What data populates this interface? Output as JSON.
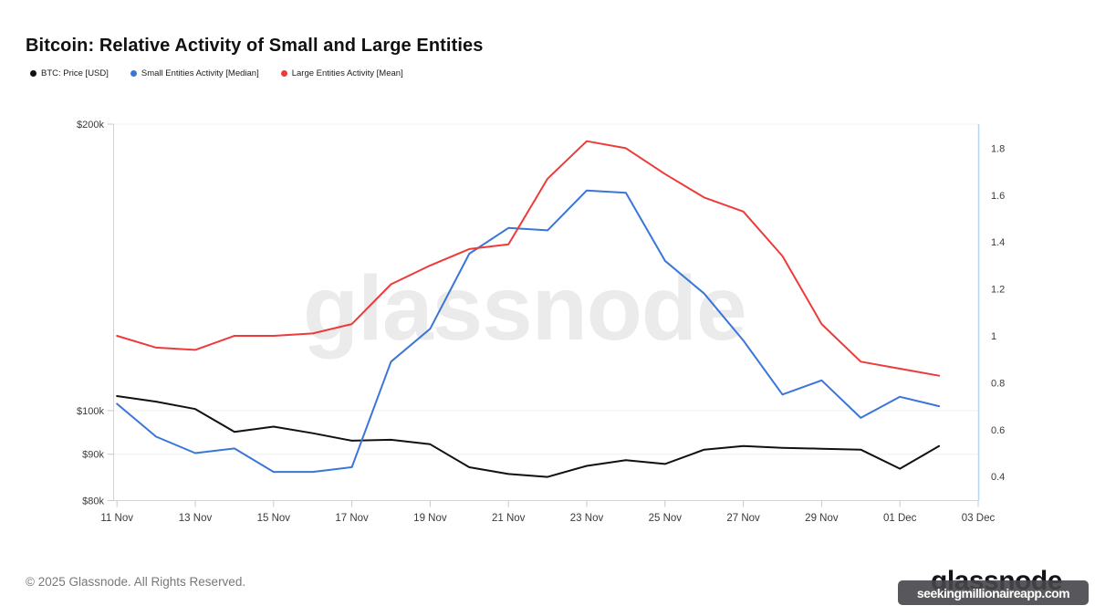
{
  "header": {
    "title": "Bitcoin: Relative Activity of Small and Large Entities"
  },
  "legend": {
    "items": [
      {
        "label": "BTC: Price [USD]",
        "color": "#111111"
      },
      {
        "label": "Small Entities Activity [Median]",
        "color": "#3a75d8"
      },
      {
        "label": "Large Entities Activity [Mean]",
        "color": "#ed3b3b"
      }
    ]
  },
  "watermark": "glassnode",
  "footer": {
    "copyright": "© 2025 Glassnode. All Rights Reserved.",
    "brand": "glassnode",
    "overlay": "seekingmillionaireapp.com"
  },
  "chart_data": {
    "type": "line",
    "title": "Bitcoin: Relative Activity of Small and Large Entities",
    "x": [
      "11 Nov",
      "12 Nov",
      "13 Nov",
      "14 Nov",
      "15 Nov",
      "16 Nov",
      "17 Nov",
      "18 Nov",
      "19 Nov",
      "20 Nov",
      "21 Nov",
      "22 Nov",
      "23 Nov",
      "24 Nov",
      "25 Nov",
      "26 Nov",
      "27 Nov",
      "28 Nov",
      "29 Nov",
      "30 Nov",
      "01 Dec",
      "02 Dec"
    ],
    "x_axis_tick_labels": [
      "11 Nov",
      "13 Nov",
      "15 Nov",
      "17 Nov",
      "19 Nov",
      "21 Nov",
      "23 Nov",
      "25 Nov",
      "27 Nov",
      "29 Nov",
      "01 Dec",
      "03 Dec"
    ],
    "left_axis": {
      "scale": "log",
      "unit": "USD",
      "range": [
        80000,
        208000
      ],
      "ticks": [
        {
          "label": "$200k",
          "value": 200000
        },
        {
          "label": "$100k",
          "value": 100000
        },
        {
          "label": "$90k",
          "value": 90000
        },
        {
          "label": "$80k",
          "value": 80000
        }
      ]
    },
    "right_axis": {
      "scale": "linear",
      "range": [
        0.32,
        1.88
      ],
      "ticks": [
        {
          "label": "1.8",
          "value": 1.8
        },
        {
          "label": "1.6",
          "value": 1.6
        },
        {
          "label": "1.4",
          "value": 1.4
        },
        {
          "label": "1.2",
          "value": 1.2
        },
        {
          "label": "1",
          "value": 1.0
        },
        {
          "label": "0.8",
          "value": 0.8
        },
        {
          "label": "0.6",
          "value": 0.6
        },
        {
          "label": "0.4",
          "value": 0.4
        }
      ]
    },
    "series": [
      {
        "name": "BTC: Price [USD]",
        "axis": "left",
        "color": "#111111",
        "values": [
          103600,
          102200,
          100400,
          95000,
          96200,
          94700,
          93000,
          93200,
          92200,
          87200,
          85800,
          85200,
          87500,
          88700,
          87900,
          91000,
          91800,
          91400,
          91200,
          91000,
          86900,
          91800
        ]
      },
      {
        "name": "Small Entities Activity [Median]",
        "axis": "right",
        "color": "#3a75d8",
        "values": [
          0.71,
          0.57,
          0.5,
          0.52,
          0.42,
          0.42,
          0.44,
          0.89,
          1.03,
          1.35,
          1.46,
          1.45,
          1.62,
          1.61,
          1.32,
          1.18,
          0.98,
          0.75,
          0.81,
          0.65,
          0.74,
          0.7
        ]
      },
      {
        "name": "Large Entities Activity [Mean]",
        "axis": "right",
        "color": "#ed3b3b",
        "values": [
          1.0,
          0.95,
          0.94,
          1.0,
          1.0,
          1.01,
          1.05,
          1.22,
          1.3,
          1.37,
          1.39,
          1.67,
          1.83,
          1.8,
          1.69,
          1.59,
          1.53,
          1.34,
          1.05,
          0.89,
          0.86,
          0.83
        ]
      }
    ],
    "legend_position": "top-left",
    "grid": "horizontal-only",
    "colors": {
      "grid": "#f0f0f0",
      "axis_line": "#d4d4d4",
      "tick": "#c9c9c9",
      "right_axis_line": "#b5d8f0",
      "tick_label": "#3a3a3a"
    }
  }
}
